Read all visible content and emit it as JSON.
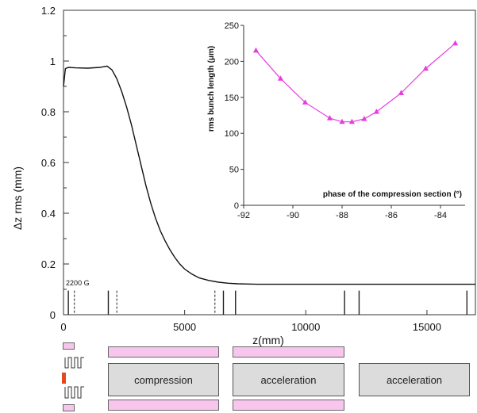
{
  "chart_data": [
    {
      "type": "line",
      "title": "",
      "xlabel": "z(mm)",
      "ylabel": "Δz rms (mm)",
      "xlim": [
        0,
        17000
      ],
      "ylim": [
        0,
        1.2
      ],
      "x_ticks": [
        {
          "value": 0,
          "label": "0"
        },
        {
          "value": 5000,
          "label": "5000"
        },
        {
          "value": 10000,
          "label": "10000"
        },
        {
          "value": 15000,
          "label": "15000"
        }
      ],
      "y_ticks": [
        {
          "value": 0,
          "label": "0"
        },
        {
          "value": 0.2,
          "label": "0.2"
        },
        {
          "value": 0.4,
          "label": "0.4"
        },
        {
          "value": 0.6,
          "label": "0.6"
        },
        {
          "value": 0.8,
          "label": "0.8"
        },
        {
          "value": 1.0,
          "label": "1"
        },
        {
          "value": 1.2,
          "label": "1.2"
        }
      ],
      "series": [
        {
          "color": "#111111",
          "x": [
            0,
            80,
            200,
            500,
            1000,
            1500,
            1800,
            2000,
            2200,
            2400,
            2600,
            2800,
            3000,
            3200,
            3400,
            3600,
            3800,
            4000,
            4200,
            4400,
            4600,
            4800,
            5000,
            5300,
            5600,
            6000,
            6400,
            6800,
            7200,
            7600,
            8000,
            9000,
            10000,
            12000,
            14000,
            16000,
            17000
          ],
          "values": [
            0.9,
            0.97,
            0.975,
            0.973,
            0.972,
            0.975,
            0.98,
            0.965,
            0.93,
            0.88,
            0.82,
            0.75,
            0.67,
            0.59,
            0.51,
            0.44,
            0.38,
            0.33,
            0.29,
            0.255,
            0.225,
            0.2,
            0.18,
            0.16,
            0.145,
            0.135,
            0.128,
            0.124,
            0.122,
            0.121,
            0.12,
            0.12,
            0.12,
            0.12,
            0.12,
            0.12,
            0.12
          ]
        }
      ],
      "annotations": [
        {
          "text": "2200 G",
          "x": 100,
          "y": 0.115
        }
      ],
      "element_markers": [
        {
          "x": 200,
          "style": "solid"
        },
        {
          "x": 450,
          "style": "dashed"
        },
        {
          "x": 1850,
          "style": "solid"
        },
        {
          "x": 2200,
          "style": "dashed"
        },
        {
          "x": 6250,
          "style": "dashed"
        },
        {
          "x": 6600,
          "style": "solid"
        },
        {
          "x": 7100,
          "style": "solid"
        },
        {
          "x": 11600,
          "style": "solid"
        },
        {
          "x": 12200,
          "style": "solid"
        },
        {
          "x": 16650,
          "style": "solid"
        }
      ]
    },
    {
      "type": "line",
      "title": "",
      "xlabel": "phase of the compression section (°)",
      "ylabel": "rms bunch length (μm)",
      "xlim": [
        -92,
        -83
      ],
      "ylim": [
        0,
        250
      ],
      "x_ticks": [
        {
          "value": -92,
          "label": "-92"
        },
        {
          "value": -90,
          "label": "-90"
        },
        {
          "value": -88,
          "label": "-88"
        },
        {
          "value": -86,
          "label": "-86"
        },
        {
          "value": -84,
          "label": "-84"
        }
      ],
      "y_ticks": [
        {
          "value": 0,
          "label": "0"
        },
        {
          "value": 50,
          "label": "50"
        },
        {
          "value": 100,
          "label": "100"
        },
        {
          "value": 150,
          "label": "150"
        },
        {
          "value": 200,
          "label": "200"
        },
        {
          "value": 250,
          "label": "250"
        }
      ],
      "series": [
        {
          "color": "#e83ce0",
          "marker": "triangle",
          "x": [
            -91.5,
            -90.5,
            -89.5,
            -88.5,
            -88.0,
            -87.6,
            -87.1,
            -86.6,
            -85.6,
            -84.6,
            -83.4
          ],
          "values": [
            215,
            176,
            143,
            121,
            116,
            116,
            120,
            130,
            156,
            190,
            225
          ]
        }
      ]
    }
  ],
  "layout_diagram": {
    "sections": [
      {
        "label": "compression"
      },
      {
        "label": "acceleration"
      },
      {
        "label": "acceleration"
      }
    ]
  }
}
